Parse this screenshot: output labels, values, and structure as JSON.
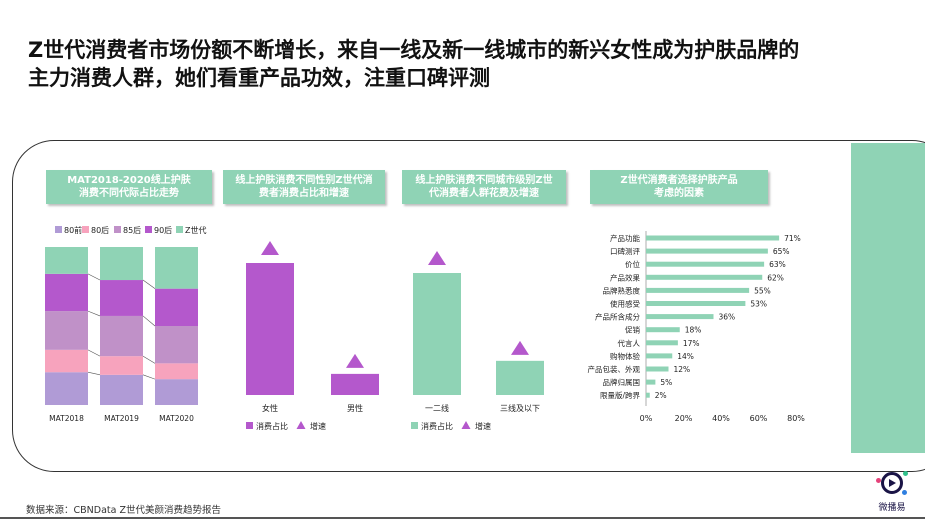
{
  "headline": {
    "line1": "Z世代消费者市场份额不断增长，来自一线及新一线城市的新兴女性成为护肤品牌的",
    "line2": "主力消费人群，她们看重产品功效，注重口碑评测"
  },
  "panels": [
    {
      "line1": "MAT2018-2020线上护肤",
      "line2": "消费不同代际占比走势"
    },
    {
      "line1": "线上护肤消费不同性别Z世代消",
      "line2": "费者消费占比和增速"
    },
    {
      "line1": "线上护肤消费不同城市级别Z世",
      "line2": "代消费者人群花费及增速"
    },
    {
      "line1": "Z世代消费者选择护肤产品",
      "line2": "考虑的因素"
    }
  ],
  "source": "数据来源：CBNData Z世代美颜消费趋势报告",
  "logo": {
    "text": "微播易",
    "icon": "play-logo-icon"
  },
  "colors": {
    "gen_80before": "#b09bd6",
    "gen_80after": "#f7a3bd",
    "gen_85after": "#c091c8",
    "gen_90after": "#b458cc",
    "gen_z": "#8fd3b5",
    "purple": "#b458cc",
    "green": "#8fd3b5",
    "title_bg": "#8fd3b5"
  },
  "chart_data": [
    {
      "type": "bar",
      "stacked": true,
      "normalized": true,
      "categories": [
        "MAT2018",
        "MAT2019",
        "MAT2020"
      ],
      "series": [
        {
          "name": "80前",
          "values": [
            22,
            21,
            18
          ]
        },
        {
          "name": "80后",
          "values": [
            15,
            13,
            11
          ]
        },
        {
          "name": "85后",
          "values": [
            26,
            28,
            26
          ]
        },
        {
          "name": "90后",
          "values": [
            25,
            25,
            26
          ]
        },
        {
          "name": "Z世代",
          "values": [
            18,
            23,
            29
          ]
        }
      ],
      "legend_position": "top",
      "grid": false
    },
    {
      "type": "bar",
      "categories": [
        "女性",
        "男性"
      ],
      "series": [
        {
          "name": "消费占比",
          "values": [
            100,
            16
          ]
        },
        {
          "name": "增速",
          "values": [
            100,
            20
          ]
        }
      ],
      "legend": [
        "消费占比",
        "增速"
      ],
      "note": "relative bar heights; growth shown as triangle markers"
    },
    {
      "type": "bar",
      "categories": [
        "一二线",
        "三线及以下"
      ],
      "series": [
        {
          "name": "消费占比",
          "values": [
            100,
            28
          ]
        },
        {
          "name": "增速",
          "values": [
            100,
            36
          ]
        }
      ],
      "legend": [
        "消费占比",
        "增速"
      ],
      "note": "relative bar heights; growth shown as triangle markers"
    },
    {
      "type": "bar",
      "orientation": "horizontal",
      "categories": [
        "产品功能",
        "口碑测评",
        "价位",
        "产品效果",
        "品牌熟悉度",
        "使用感受",
        "产品所含成分",
        "促销",
        "代言人",
        "购物体验",
        "产品包装、外观",
        "品牌归属国",
        "限量版/跨界"
      ],
      "values": [
        71,
        65,
        63,
        62,
        55,
        53,
        36,
        18,
        17,
        14,
        12,
        5,
        2
      ],
      "value_labels": [
        "71%",
        "65%",
        "63%",
        "62%",
        "55%",
        "53%",
        "36%",
        "18%",
        "17%",
        "14%",
        "12%",
        "5%",
        "2%"
      ],
      "xlim": [
        0,
        80
      ],
      "xticks": [
        "0%",
        "20%",
        "40%",
        "60%",
        "80%"
      ],
      "grid": false
    }
  ]
}
